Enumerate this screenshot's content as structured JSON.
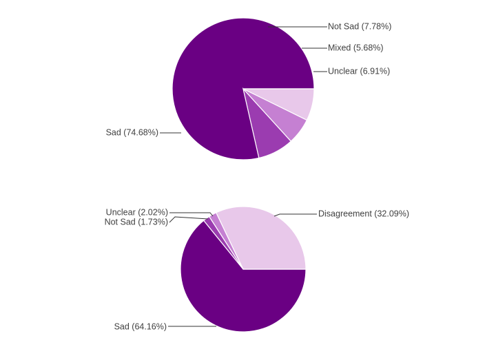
{
  "chart_data": [
    {
      "type": "pie",
      "title": "",
      "legend": "none",
      "slices": [
        {
          "label": "Sad (74.68%)",
          "value": 74.68,
          "color": "#6a0083"
        },
        {
          "label": "Not Sad (7.78%)",
          "value": 7.78,
          "color": "#9b3cb0"
        },
        {
          "label": "Mixed (5.68%)",
          "value": 5.68,
          "color": "#c580d2"
        },
        {
          "label": "Unclear (6.91%)",
          "value": 6.91,
          "color": "#e8c8ea"
        }
      ]
    },
    {
      "type": "pie",
      "title": "",
      "legend": "none",
      "slices": [
        {
          "label": "Sad (64.16%)",
          "value": 64.16,
          "color": "#6a0083"
        },
        {
          "label": "Not Sad (1.73%)",
          "value": 1.73,
          "color": "#9b3cb0"
        },
        {
          "label": "Unclear (2.02%)",
          "value": 2.02,
          "color": "#c580d2"
        },
        {
          "label": "Disagreement (32.09%)",
          "value": 32.09,
          "color": "#e8c8ea"
        }
      ]
    }
  ]
}
